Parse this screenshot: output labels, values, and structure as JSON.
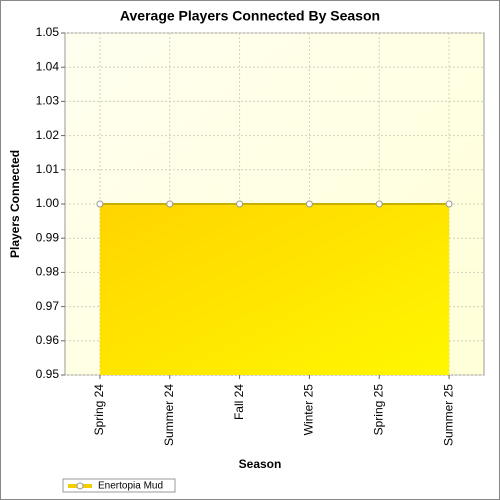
{
  "chart_data": {
    "type": "area",
    "title": "Average Players Connected By Season",
    "x_label": "Season",
    "y_label": "Players Connected",
    "categories": [
      "Spring 24",
      "Summer 24",
      "Fall 24",
      "Winter 25",
      "Spring 25",
      "Summer 25"
    ],
    "series": [
      {
        "name": "Enertopia Mud",
        "color": "#f2cf00",
        "values": [
          1,
          1,
          1,
          1,
          1,
          1
        ]
      }
    ],
    "ylim": [
      0.95,
      1.05
    ],
    "yticks": [
      0.95,
      0.96,
      0.97,
      0.98,
      0.99,
      {
        "value": 1,
        "label": "1.00"
      },
      1.01,
      1.02,
      1.03,
      1.04,
      1.05
    ],
    "grid": true,
    "legend": "bottom-left"
  }
}
